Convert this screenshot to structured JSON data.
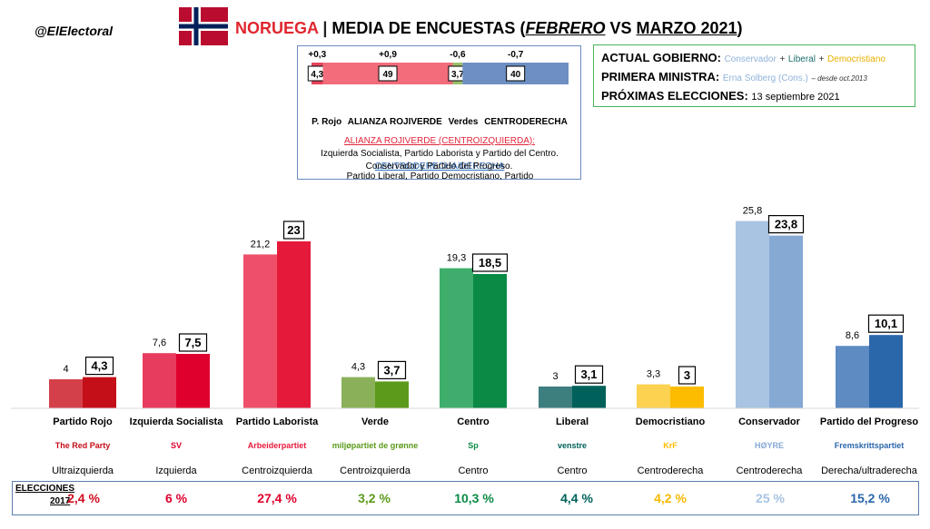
{
  "header": {
    "handle": "@ElElectoral",
    "country": "NORUEGA",
    "separator": "|",
    "title_main": "MEDIA DE ENCUESTAS (",
    "title_feb": "FEBRERO",
    "title_vs": "VS",
    "title_mar": "MARZO 2021",
    "title_close": ")"
  },
  "bloc_box": {
    "changes": [
      "+0,3",
      "+0,9",
      "-0,6",
      "-0,7"
    ],
    "values": [
      "4,3",
      "49",
      "3,7",
      "40"
    ],
    "bar_values": [
      4.3,
      49,
      3.7,
      40
    ],
    "bar_colors": [
      "#e8435a",
      "#f26c7c",
      "#9ac06a",
      "#6d8fc2"
    ],
    "labels": [
      "P. Rojo",
      "ALIANZA ROJIVERDE",
      "Verdes",
      "CENTRODERECHA"
    ],
    "left_title": "ALIANZA ROJIVERDE (CENTROIZQUIERDA):",
    "left_desc": "Izquierda Socialista, Partido Laborista y Partido del Centro.",
    "right_title": "CENTRODERECHA/DERECHA",
    "right_desc_1": "Partido Liberal, Partido Democristiano, Partido",
    "right_desc_2": "Conservador y Partido del Progreso."
  },
  "government": {
    "actual_label": "ACTUAL GOBIERNO:",
    "parties": [
      "Conservador",
      "Liberal",
      "Democristiano"
    ],
    "plus": "+",
    "pm_label": "PRIMERA MINISTRA:",
    "pm_name": "Erna Solberg (Cons.)",
    "pm_since": "– desde oct.2013",
    "next_label": "PRÓXIMAS ELECCIONES:",
    "next_date": "13 septiembre 2021"
  },
  "chart_data": {
    "type": "bar",
    "categories": [
      "Partido Rojo",
      "Izquierda Socialista",
      "Partido Laborista",
      "Verde",
      "Centro",
      "Liberal",
      "Democristiano",
      "Conservador",
      "Partido del Progreso"
    ],
    "series": [
      {
        "name": "FEBRERO",
        "values": [
          4,
          7.6,
          21.2,
          4.3,
          19.3,
          3,
          3.3,
          25.8,
          8.6
        ]
      },
      {
        "name": "MARZO 2021",
        "values": [
          4.3,
          7.5,
          23,
          3.7,
          18.5,
          3.1,
          3,
          23.8,
          10.1
        ]
      }
    ],
    "feb_labels": [
      "4",
      "7,6",
      "21,2",
      "4,3",
      "19,3",
      "3",
      "3,3",
      "25,8",
      "8,6"
    ],
    "mar_labels": [
      "4,3",
      "7,5",
      "23",
      "3,7",
      "18,5",
      "3,1",
      "3",
      "23,8",
      "10,1"
    ],
    "colors_feb": [
      "#d4404a",
      "#e83c5e",
      "#ef5069",
      "#8ab15a",
      "#3fae6c",
      "#3d7e7e",
      "#fdd250",
      "#a8c4e2",
      "#5d8bc2"
    ],
    "colors_mar": [
      "#c40e18",
      "#e0002e",
      "#e51a3a",
      "#5c9a1c",
      "#0a8a45",
      "#00615a",
      "#fdbc00",
      "#86a9d4",
      "#2a66aa"
    ],
    "orientations": [
      "Ultraizquierda",
      "Izquierda",
      "Centroizquierda",
      "Centroizquierda",
      "Centro",
      "Centro",
      "Centroderecha",
      "Centroderecha",
      "Derecha/ultraderecha"
    ],
    "logos": [
      "The Red Party",
      "SV",
      "Arbeiderpartiet",
      "miljøpartiet de grønne",
      "Sp",
      "venstre",
      "KrF",
      "HØYRE",
      "Fremskrittspartiet"
    ],
    "ylim": [
      0,
      30
    ]
  },
  "elections": {
    "label_1": "ELECCIONES",
    "label_2": "2017",
    "values": [
      "2,4 %",
      "6 %",
      "27,4 %",
      "3,2 %",
      "10,3 %",
      "4,4 %",
      "4,2 %",
      "25 %",
      "15,2 %"
    ],
    "colors": [
      "#d01020",
      "#e0002e",
      "#e0002e",
      "#5c9a1c",
      "#0a8a45",
      "#00615a",
      "#f5b800",
      "#a8c4e2",
      "#2a66aa"
    ]
  }
}
